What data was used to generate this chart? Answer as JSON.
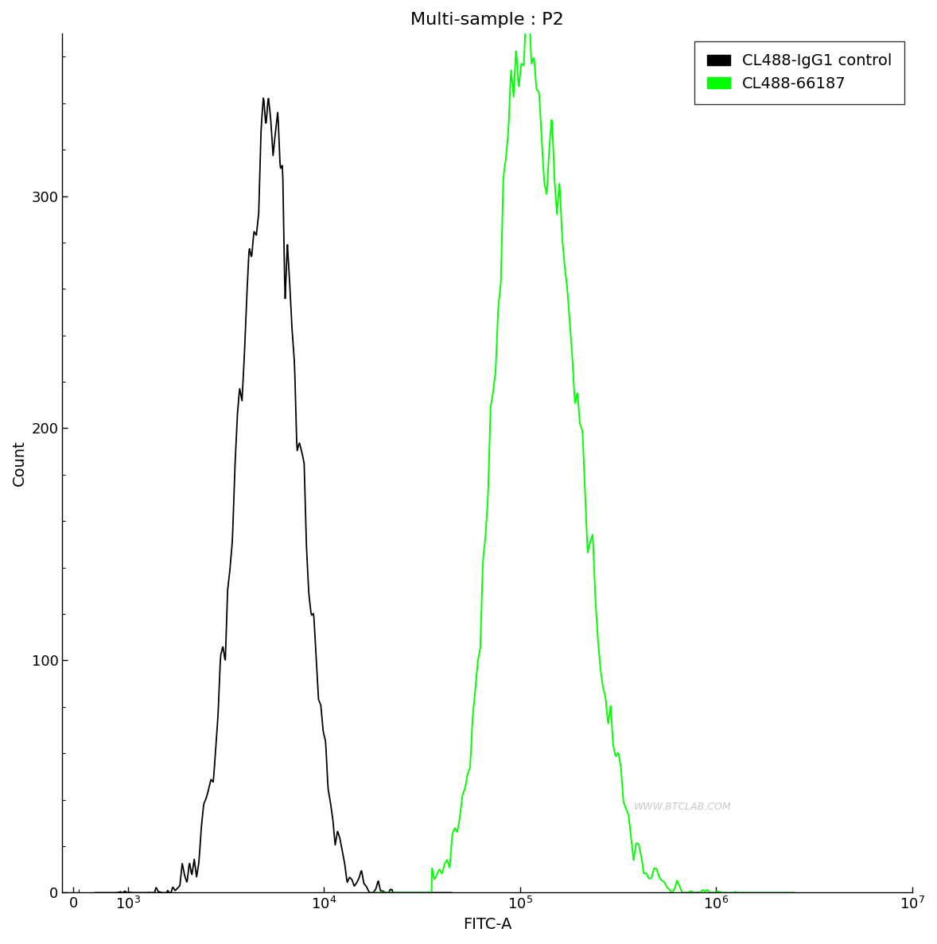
{
  "title": "Multi-sample : P2",
  "xlabel": "FITC-A",
  "ylabel": "Count",
  "ylim": [
    0,
    370
  ],
  "yticks": [
    0,
    100,
    200,
    300
  ],
  "watermark": "WWW.BTCLAB.COM",
  "legend_labels": [
    "CL488-IgG1 control",
    "CL488-66187"
  ],
  "legend_colors": [
    "#000000",
    "#00ff00"
  ],
  "black_peak_log": 3.72,
  "black_sigma_log": 0.155,
  "black_peak_height": 328,
  "black_noise_scale": 0.055,
  "black_start_log": 2.9,
  "black_end_log": 4.35,
  "green_peak_log": 5.12,
  "green_sigma_log": 0.2,
  "green_peak_height": 308,
  "green_noise_scale": 0.045,
  "green_start_log": 4.55,
  "green_end_log": 6.1,
  "green_shoulder_log": 4.95,
  "green_shoulder_height": 0.42,
  "green_shoulder_sigma": 0.09,
  "black_color": "#000000",
  "green_color": "#00ff00",
  "title_fontsize": 16,
  "axis_fontsize": 14,
  "tick_fontsize": 13,
  "legend_fontsize": 14,
  "linthresh": 1000,
  "linscale": 0.25,
  "xlim_left": -200,
  "xlim_right": 10000000
}
